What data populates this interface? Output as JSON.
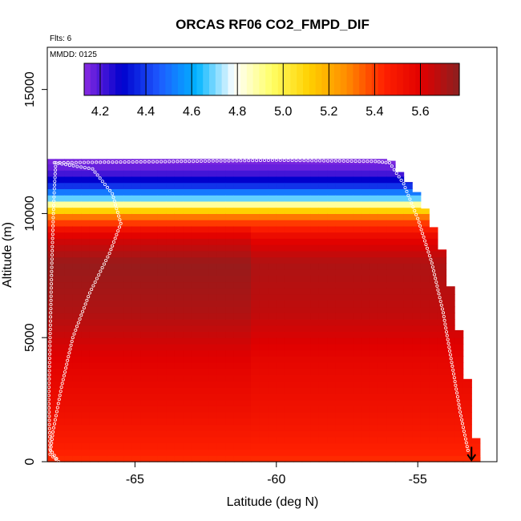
{
  "chart_data": {
    "type": "heatmap",
    "title": "ORCAS RF06 CO2_FMPD_DIF",
    "notes": [
      "Flts: 6",
      "MMDD: 0125"
    ],
    "xlabel": "Latitude (deg N)",
    "ylabel": "Altitude (m)",
    "xlim": [
      -68.1,
      -52.2
    ],
    "ylim": [
      0,
      16700
    ],
    "x_ticks": [
      -65,
      -60,
      -55
    ],
    "x_tick_labels": [
      "-65",
      "-60",
      "-55"
    ],
    "y_ticks": [
      0,
      5000,
      10000,
      15000
    ],
    "y_tick_labels": [
      "0",
      "5000",
      "10000",
      "15000"
    ],
    "colorbar": {
      "range": [
        4.13,
        5.77
      ],
      "ticks": [
        4.2,
        4.4,
        4.6,
        4.8,
        5.0,
        5.2,
        5.4,
        5.6
      ],
      "tick_labels": [
        "4.2",
        "4.4",
        "4.6",
        "4.8",
        "5.0",
        "5.2",
        "5.4",
        "5.6"
      ],
      "colors": [
        "#8a2be2",
        "#0000cd",
        "#1e5aff",
        "#00b4ff",
        "#ffffff",
        "#ffff66",
        "#ffd000",
        "#ff8c00",
        "#ff2000",
        "#e00000",
        "#8b2020"
      ]
    },
    "grid": false,
    "altitude_band_values": [
      {
        "z": 12000,
        "v": 4.15
      },
      {
        "z": 11600,
        "v": 4.22
      },
      {
        "z": 11200,
        "v": 4.35
      },
      {
        "z": 10800,
        "v": 4.55
      },
      {
        "z": 10500,
        "v": 4.78
      },
      {
        "z": 10200,
        "v": 5.05
      },
      {
        "z": 9900,
        "v": 5.3
      },
      {
        "z": 9500,
        "v": 5.45
      },
      {
        "z": 9000,
        "v": 5.6
      },
      {
        "z": 8000,
        "v": 5.72
      },
      {
        "z": 6000,
        "v": 5.68
      },
      {
        "z": 4000,
        "v": 5.58
      },
      {
        "z": 2000,
        "v": 5.52
      },
      {
        "z": 500,
        "v": 5.45
      },
      {
        "z": 0,
        "v": 5.42
      }
    ],
    "ceiling_profile": [
      {
        "x": -68.1,
        "z": 12200
      },
      {
        "x": -56.0,
        "z": 12200
      },
      {
        "x": -55.6,
        "z": 11600
      },
      {
        "x": -55.0,
        "z": 10800
      },
      {
        "x": -54.5,
        "z": 9600
      },
      {
        "x": -54.1,
        "z": 8400
      },
      {
        "x": -53.8,
        "z": 6800
      },
      {
        "x": -53.5,
        "z": 5000
      },
      {
        "x": -53.2,
        "z": 3000
      },
      {
        "x": -53.0,
        "z": 1200
      },
      {
        "x": -52.8,
        "z": 200
      }
    ],
    "flight_track": [
      {
        "x": -67.85,
        "z": 12050
      },
      {
        "x": -66.5,
        "z": 11800
      },
      {
        "x": -65.8,
        "z": 10800
      },
      {
        "x": -65.5,
        "z": 9600
      },
      {
        "x": -65.9,
        "z": 8400
      },
      {
        "x": -66.6,
        "z": 6800
      },
      {
        "x": -67.2,
        "z": 5000
      },
      {
        "x": -67.6,
        "z": 3000
      },
      {
        "x": -67.9,
        "z": 1200
      },
      {
        "x": -68.0,
        "z": 300
      },
      {
        "x": -67.7,
        "z": 0
      },
      {
        "x": -68.0,
        "z": 500
      },
      {
        "x": -68.05,
        "z": 2500
      },
      {
        "x": -68.0,
        "z": 5000
      },
      {
        "x": -67.95,
        "z": 7500
      },
      {
        "x": -67.9,
        "z": 9500
      },
      {
        "x": -67.85,
        "z": 11000
      },
      {
        "x": -67.8,
        "z": 12050
      },
      {
        "x": -63.5,
        "z": 12100
      },
      {
        "x": -60.0,
        "z": 12150
      },
      {
        "x": -56.5,
        "z": 12100
      },
      {
        "x": -56.0,
        "z": 12050
      },
      {
        "x": -55.5,
        "z": 11200
      },
      {
        "x": -55.0,
        "z": 9800
      },
      {
        "x": -54.5,
        "z": 8000
      },
      {
        "x": -54.1,
        "z": 6000
      },
      {
        "x": -53.8,
        "z": 4000
      },
      {
        "x": -53.5,
        "z": 2000
      },
      {
        "x": -53.2,
        "z": 300
      }
    ],
    "arrow": {
      "x": -53.1,
      "z_from": 600,
      "z_to": 0
    }
  }
}
